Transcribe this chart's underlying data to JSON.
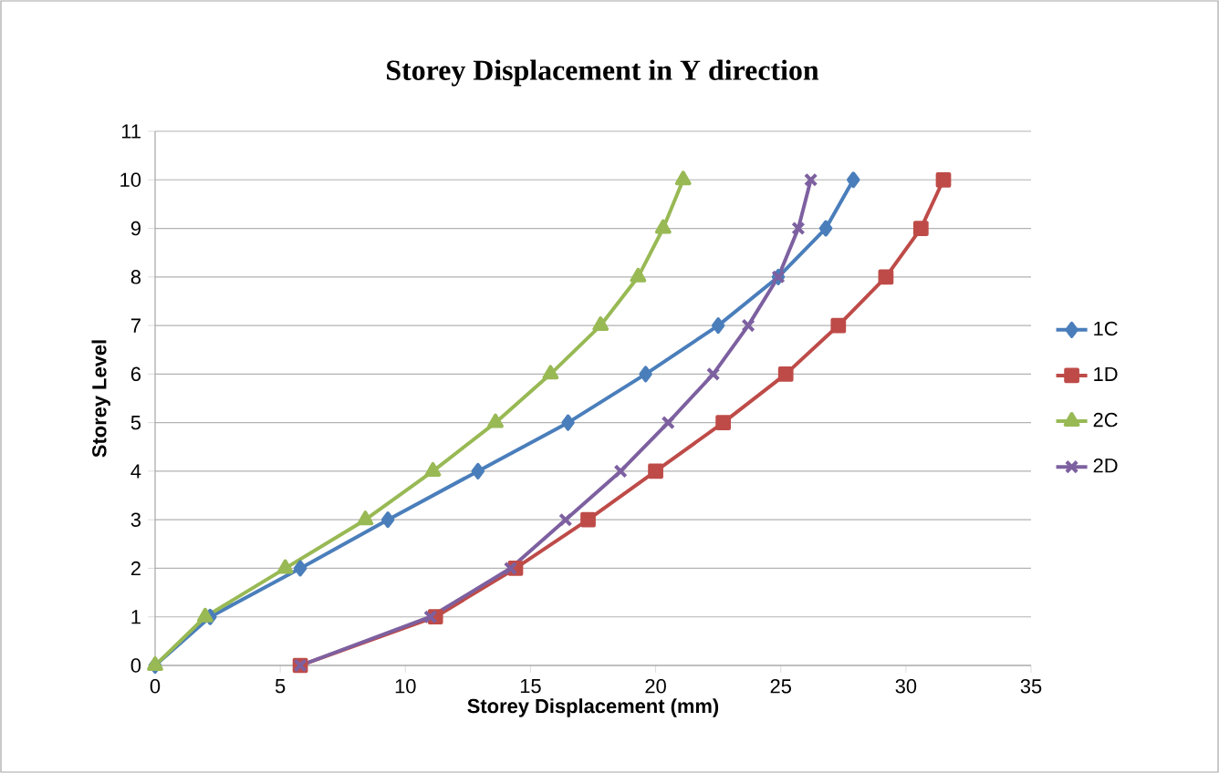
{
  "chart_data": {
    "type": "line",
    "title": "Storey Displacement in Y direction",
    "xlabel": "Storey Displacement (mm)",
    "ylabel": "Storey Level",
    "series": [
      {
        "name": "1C",
        "color": "#4a7ebb",
        "marker": "diamond",
        "x": [
          0,
          2.2,
          5.8,
          9.3,
          12.9,
          16.5,
          19.6,
          22.5,
          24.9,
          26.8,
          27.9
        ],
        "values": [
          0,
          1,
          2,
          3,
          4,
          5,
          6,
          7,
          8,
          9,
          10
        ]
      },
      {
        "name": "1D",
        "color": "#be4b48",
        "marker": "square",
        "x": [
          5.8,
          11.2,
          14.4,
          17.3,
          20.0,
          22.7,
          25.2,
          27.3,
          29.2,
          30.6,
          31.5
        ],
        "values": [
          0,
          1,
          2,
          3,
          4,
          5,
          6,
          7,
          8,
          9,
          10
        ]
      },
      {
        "name": "2C",
        "color": "#98b954",
        "marker": "triangle",
        "x": [
          0,
          2.0,
          5.2,
          8.4,
          11.1,
          13.6,
          15.8,
          17.8,
          19.3,
          20.3,
          21.1
        ],
        "values": [
          0,
          1,
          2,
          3,
          4,
          5,
          6,
          7,
          8,
          9,
          10
        ]
      },
      {
        "name": "2D",
        "color": "#7d60a0",
        "marker": "cross",
        "x": [
          5.8,
          11.0,
          14.2,
          16.4,
          18.6,
          20.5,
          22.3,
          23.7,
          24.9,
          25.7,
          26.2
        ],
        "values": [
          0,
          1,
          2,
          3,
          4,
          5,
          6,
          7,
          8,
          9,
          10
        ]
      }
    ],
    "xlim": [
      0,
      35
    ],
    "xticks": [
      0,
      5,
      10,
      15,
      20,
      25,
      30,
      35
    ],
    "ylim": [
      0,
      11
    ],
    "yticks": [
      0,
      1,
      2,
      3,
      4,
      5,
      6,
      7,
      8,
      9,
      10,
      11
    ],
    "grid": "y",
    "legend": "right"
  }
}
